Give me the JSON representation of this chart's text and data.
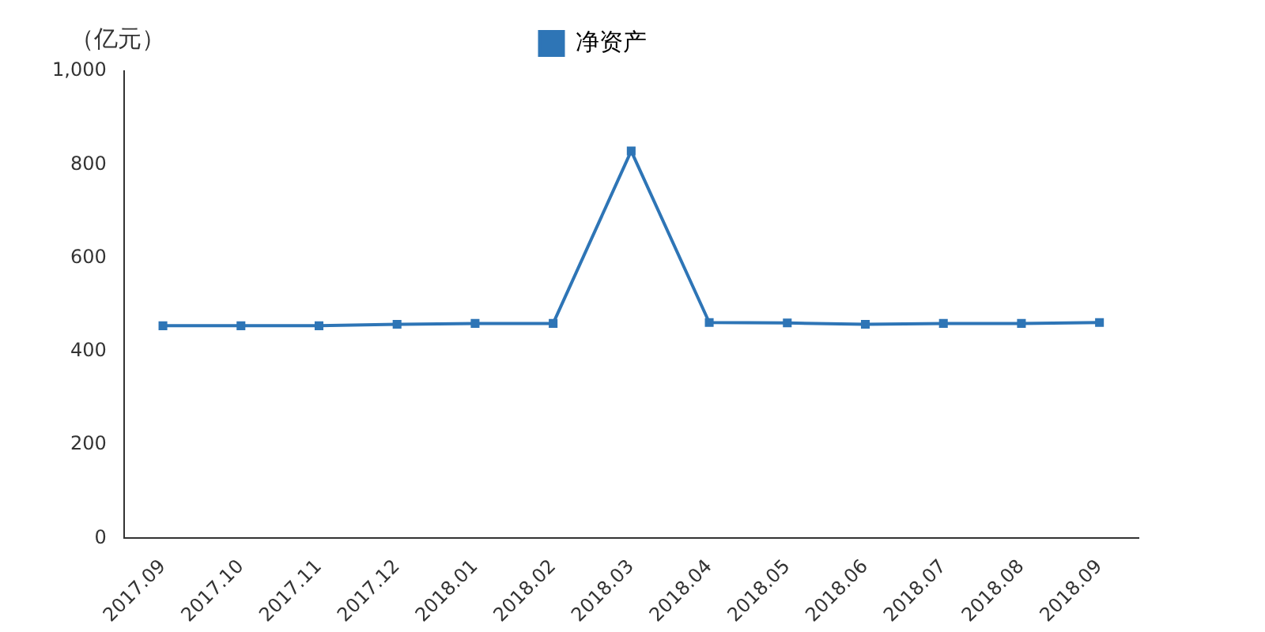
{
  "chart_data": {
    "type": "line",
    "ylabel": "（亿元）",
    "categories": [
      "2017.09",
      "2017.10",
      "2017.11",
      "2017.12",
      "2018.01",
      "2018.02",
      "2018.03",
      "2018.04",
      "2018.05",
      "2018.06",
      "2018.07",
      "2018.08",
      "2018.09"
    ],
    "series": [
      {
        "name": "净资产",
        "color": "#2e75b6",
        "values": [
          455,
          455,
          455,
          458,
          460,
          460,
          829,
          462,
          461,
          458,
          460,
          460,
          462
        ]
      }
    ],
    "ylim": [
      0,
      1000
    ],
    "yticks": [
      0,
      200,
      400,
      600,
      800,
      {
        "value": 1000,
        "label": "1,000"
      }
    ],
    "grid": false,
    "legend": "top",
    "marker": "square",
    "line_style": "solid"
  }
}
